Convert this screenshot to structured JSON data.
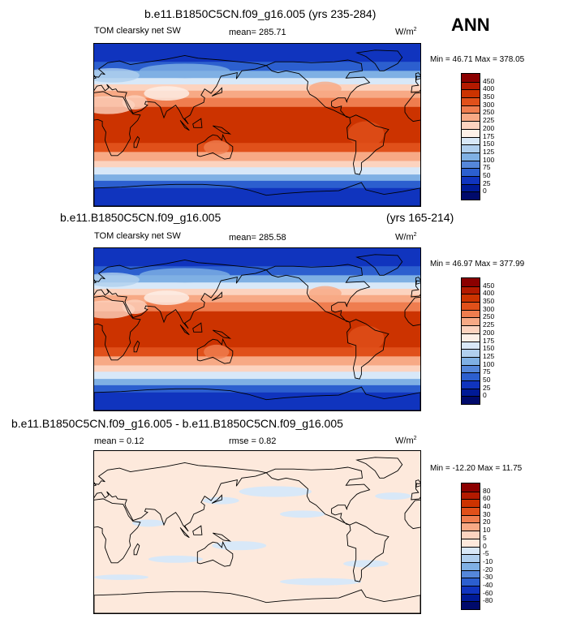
{
  "season": "ANN",
  "units": "W/m",
  "units_sup": "2",
  "panels": [
    {
      "title": "b.e11.B1850C5CN.f09_g16.005 (yrs 235-284)",
      "title_right": "",
      "left_label": "TOM clearsky net SW",
      "center_label": "mean= 285.71",
      "minmax": "Min =  46.71 Max = 378.05",
      "kind": "abs"
    },
    {
      "title": "b.e11.B1850C5CN.f09_g16.005",
      "title_right": "(yrs 165-214)",
      "left_label": "TOM clearsky net SW",
      "center_label": "mean= 285.58",
      "minmax": "Min =  46.97 Max = 377.99",
      "kind": "abs"
    },
    {
      "title": "b.e11.B1850C5CN.f09_g16.005 - b.e11.B1850C5CN.f09_g16.005",
      "title_right": "",
      "left_label": "mean =   0.12",
      "center_label": "rmse =   0.82",
      "minmax": "Min = -12.20 Max =  11.75",
      "kind": "diff"
    }
  ],
  "colorbars": {
    "abs": {
      "levels": [
        "450",
        "400",
        "350",
        "300",
        "250",
        "225",
        "200",
        "175",
        "150",
        "125",
        "100",
        "75",
        "50",
        "25",
        "0"
      ],
      "colors": [
        "#8b0000",
        "#b31a00",
        "#cc3300",
        "#e0501a",
        "#ef7d4f",
        "#f7a985",
        "#fcd3bf",
        "#fdf0e8",
        "#d8e8f8",
        "#b0cfee",
        "#7fb0e4",
        "#5587da",
        "#2c5fcf",
        "#1034be",
        "#001a96",
        "#000a6b"
      ]
    },
    "diff": {
      "levels": [
        "80",
        "60",
        "40",
        "30",
        "20",
        "10",
        "5",
        "0",
        "-5",
        "-10",
        "-20",
        "-30",
        "-40",
        "-60",
        "-80"
      ],
      "colors": [
        "#8b0000",
        "#b31a00",
        "#cc3300",
        "#e0501a",
        "#ef7d4f",
        "#f7a985",
        "#fcd3bf",
        "#fde9dc",
        "#d8e8f8",
        "#b0cfee",
        "#7fb0e4",
        "#5587da",
        "#2c5fcf",
        "#1034be",
        "#001a96",
        "#000a6b"
      ]
    }
  }
}
